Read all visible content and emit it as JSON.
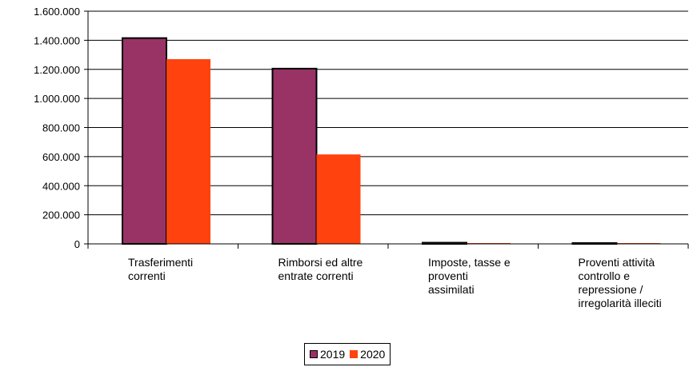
{
  "chart_data": {
    "type": "bar",
    "title": "",
    "xlabel": "",
    "ylabel": "",
    "ylim": [
      0,
      1600000
    ],
    "yticks": [
      0,
      200000,
      400000,
      600000,
      800000,
      1000000,
      1200000,
      1400000,
      1600000
    ],
    "ytick_labels": [
      "0",
      "200.000",
      "400.000",
      "600.000",
      "800.000",
      "1.000.000",
      "1.200.000",
      "1.400.000",
      "1.600.000"
    ],
    "grid": true,
    "legend_position": "bottom",
    "categories": [
      [
        "Trasferimenti",
        "correnti"
      ],
      [
        "Rimborsi ed altre",
        "entrate correnti"
      ],
      [
        "Imposte, tasse e",
        "proventi",
        "assimilati"
      ],
      [
        "Proventi attività",
        "controllo e",
        "repressione /",
        "irregolarità illeciti"
      ]
    ],
    "series": [
      {
        "name": "2019",
        "color": "#993366",
        "values": [
          1415000,
          1205000,
          8000,
          5000
        ]
      },
      {
        "name": "2020",
        "color": "#ff420e",
        "values": [
          1270000,
          615000,
          4000,
          3000
        ]
      }
    ]
  }
}
